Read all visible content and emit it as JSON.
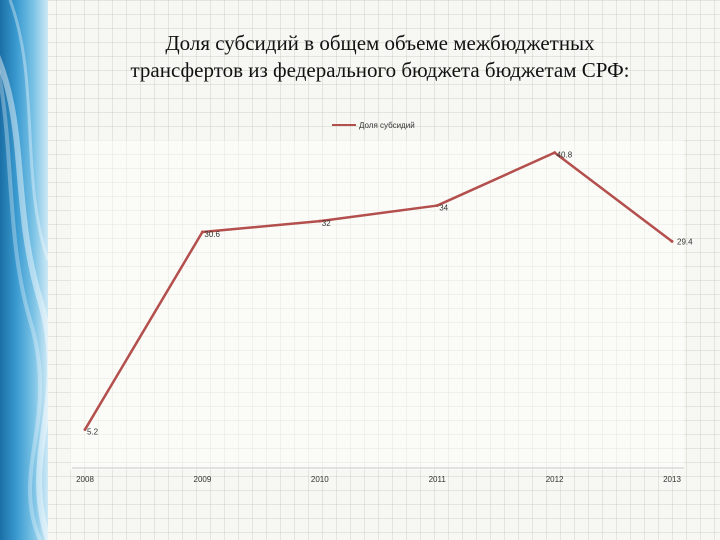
{
  "slide": {
    "title_line1": "Доля субсидий в общем объеме межбюджетных",
    "title_line2": "трансфертов из федерального бюджета бюджетам СРФ:"
  },
  "chart_data": {
    "type": "line",
    "title": "",
    "xlabel": "",
    "ylabel": "",
    "categories": [
      "2008",
      "2009",
      "2010",
      "2011",
      "2012",
      "2013"
    ],
    "series": [
      {
        "name": "Доля субсидий",
        "values": [
          5.2,
          30.6,
          32,
          34,
          40.8,
          29.4
        ],
        "color": "#b34f4c"
      }
    ],
    "data_labels": [
      "5.2",
      "30.6",
      "32",
      "34",
      "40.8",
      "29.4"
    ],
    "ylim": [
      0,
      45
    ],
    "legend": "top-center",
    "grid": false
  }
}
